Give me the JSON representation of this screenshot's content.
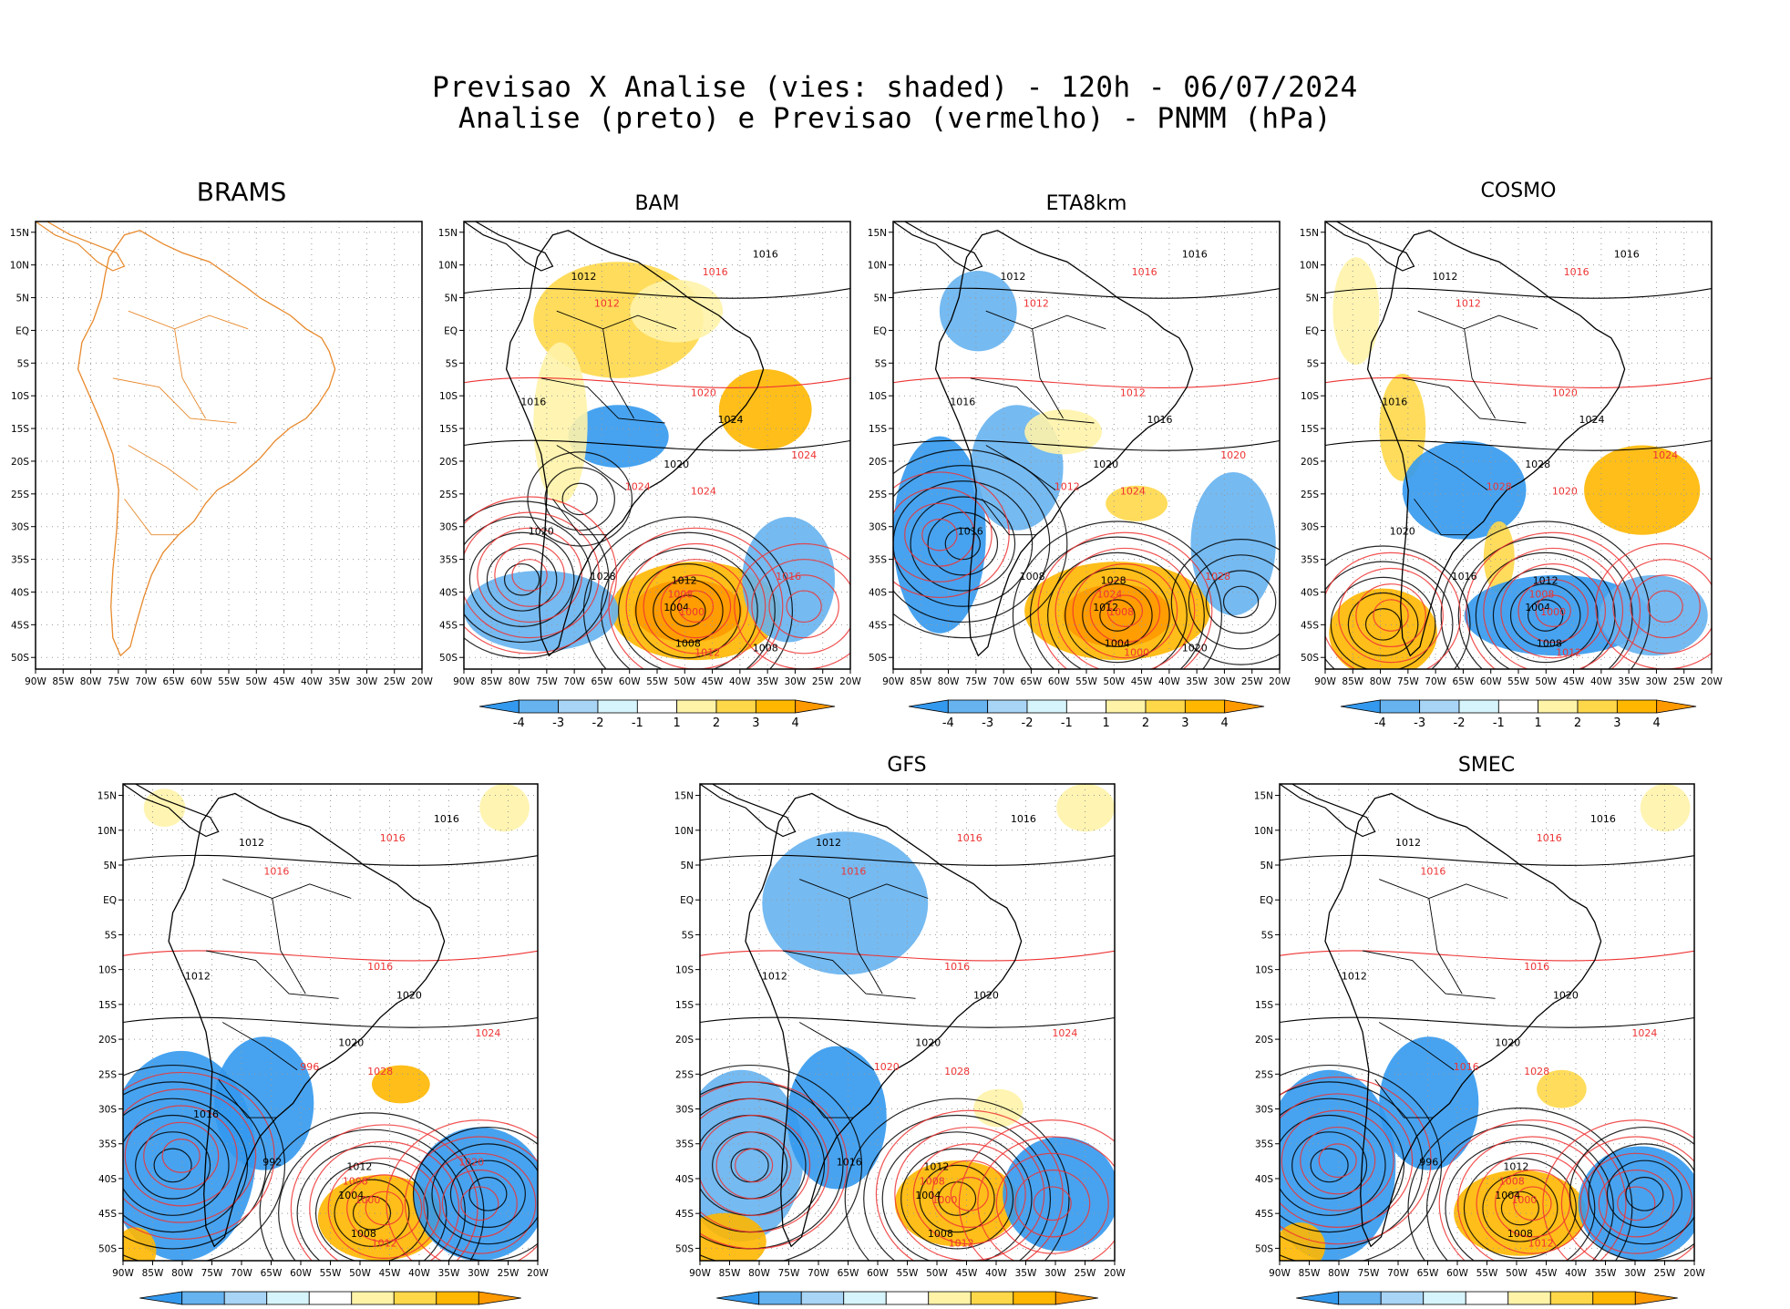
{
  "header": {
    "line1": "Previsao X Analise (vies: shaded) - 120h - 06/07/2024",
    "line2": "Analise (preto) e Previsao (vermelho) - PNMM (hPa)"
  },
  "axes": {
    "lat_labels": [
      "15N",
      "10N",
      "5N",
      "EQ",
      "5S",
      "10S",
      "15S",
      "20S",
      "25S",
      "30S",
      "35S",
      "40S",
      "45S",
      "50S"
    ],
    "lon_labels": [
      "90W",
      "85W",
      "80W",
      "75W",
      "70W",
      "65W",
      "60W",
      "55W",
      "50W",
      "45W",
      "40W",
      "35W",
      "30W",
      "25W",
      "20W"
    ]
  },
  "colorbar": {
    "labels": [
      "-4",
      "-3",
      "-2",
      "-1",
      "1",
      "2",
      "3",
      "4"
    ],
    "colors": [
      "#3399ee",
      "#66b3f0",
      "#a8d4f5",
      "#d6f4fb",
      "#ffffff",
      "#fff3a8",
      "#ffd84a",
      "#ffb700",
      "#ff9900"
    ]
  },
  "panels": [
    {
      "id": "brams",
      "title": "BRAMS",
      "has_colorbar": false
    },
    {
      "id": "bam",
      "title": "BAM",
      "has_colorbar": true
    },
    {
      "id": "eta8km",
      "title": "ETA8km",
      "has_colorbar": true
    },
    {
      "id": "cosmo",
      "title": "COSMO",
      "has_colorbar": true
    },
    {
      "id": "unnamed",
      "title": "",
      "has_colorbar": true
    },
    {
      "id": "gfs",
      "title": "GFS",
      "has_colorbar": true
    },
    {
      "id": "smec",
      "title": "SMEC",
      "has_colorbar": true
    }
  ],
  "isobar_labels": {
    "bam": [
      "1016",
      "1016",
      "1012",
      "1012",
      "1016",
      "1020",
      "1024",
      "1024",
      "1020",
      "1024",
      "1012",
      "1008",
      "1004",
      "1000",
      "1008",
      "1012",
      "1028",
      "1024",
      "1020",
      "1016",
      "1008"
    ],
    "eta8km": [
      "1016",
      "1016",
      "1012",
      "1012",
      "1016",
      "1012",
      "1016",
      "1020",
      "1020",
      "1024",
      "1028",
      "1024",
      "1012",
      "1008",
      "1004",
      "1000",
      "1008",
      "1012",
      "1016",
      "1028",
      "1020"
    ],
    "cosmo": [
      "1016",
      "1016",
      "1012",
      "1012",
      "1016",
      "1020",
      "1024",
      "1024",
      "1028",
      "1020",
      "1012",
      "1008",
      "1004",
      "1000",
      "1008",
      "1012",
      "1016",
      "1028",
      "1020"
    ],
    "unnamed": [
      "1016",
      "1016",
      "1012",
      "1016",
      "1012",
      "1016",
      "1020",
      "1024",
      "1020",
      "1028",
      "1012",
      "1008",
      "1004",
      "1000",
      "1008",
      "1012",
      "992",
      "996",
      "1016",
      "1020"
    ],
    "gfs": [
      "1016",
      "1016",
      "1012",
      "1016",
      "1012",
      "1016",
      "1020",
      "1024",
      "1020",
      "1028",
      "1012",
      "1008",
      "1004",
      "1000",
      "1008",
      "1012",
      "1016",
      "1020"
    ],
    "smec": [
      "1016",
      "1016",
      "1012",
      "1016",
      "1012",
      "1016",
      "1020",
      "1024",
      "1020",
      "1028",
      "1012",
      "1008",
      "1004",
      "1000",
      "1008",
      "1012",
      "996",
      "1016"
    ]
  }
}
